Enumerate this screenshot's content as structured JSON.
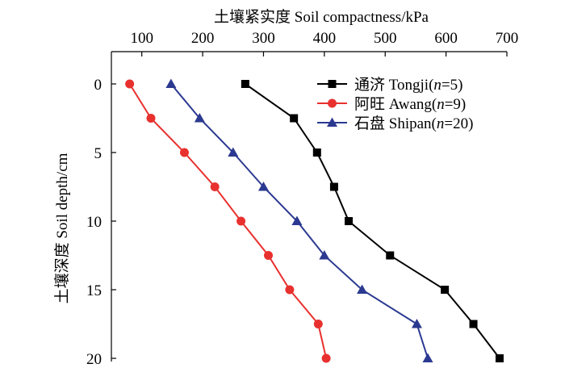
{
  "chart_data": {
    "type": "line",
    "title": "",
    "xlabel": "土壤紧实度 Soil compactness/kPa",
    "ylabel": "土壤深度 Soil depth/cm",
    "x_axis_position": "top",
    "y_inverted": true,
    "xlim": [
      50,
      700
    ],
    "ylim": [
      0,
      20
    ],
    "x_ticks": [
      100,
      200,
      300,
      400,
      500,
      600,
      700
    ],
    "y_ticks": [
      0,
      5,
      10,
      15,
      20
    ],
    "x_tick_labels": [
      "100",
      "200",
      "300",
      "400",
      "500",
      "600",
      "700"
    ],
    "y_tick_labels": [
      "0",
      "5",
      "10",
      "15",
      "20"
    ],
    "grid": false,
    "legend_position": "top-right",
    "series": [
      {
        "name": "通济 Tongji(n=5)",
        "label_prefix": "通济 Tongji(",
        "label_italic": "n",
        "label_suffix": "=5)",
        "color": "#000000",
        "marker": "square",
        "depth": [
          0,
          2.5,
          5,
          7.5,
          10,
          12.5,
          15,
          17.5,
          20
        ],
        "compactness": [
          270,
          350,
          388,
          416,
          440,
          508,
          598,
          645,
          688
        ]
      },
      {
        "name": "阿旺 Awang(n=9)",
        "label_prefix": "阿旺 Awang(",
        "label_italic": "n",
        "label_suffix": "=9)",
        "color": "#e8312f",
        "marker": "circle",
        "depth": [
          0,
          2.5,
          5,
          7.5,
          10,
          12.5,
          15,
          17.5,
          20
        ],
        "compactness": [
          80,
          115,
          170,
          220,
          263,
          308,
          343,
          390,
          403
        ]
      },
      {
        "name": "石盘 Shipan(n=20)",
        "label_prefix": "石盘 Shipan(",
        "label_italic": "n",
        "label_suffix": "=20)",
        "color": "#2b3990",
        "marker": "triangle",
        "depth": [
          0,
          2.5,
          5,
          7.5,
          10,
          12.5,
          15,
          17.5,
          20
        ],
        "compactness": [
          148,
          195,
          250,
          300,
          355,
          400,
          462,
          552,
          570
        ]
      }
    ]
  }
}
